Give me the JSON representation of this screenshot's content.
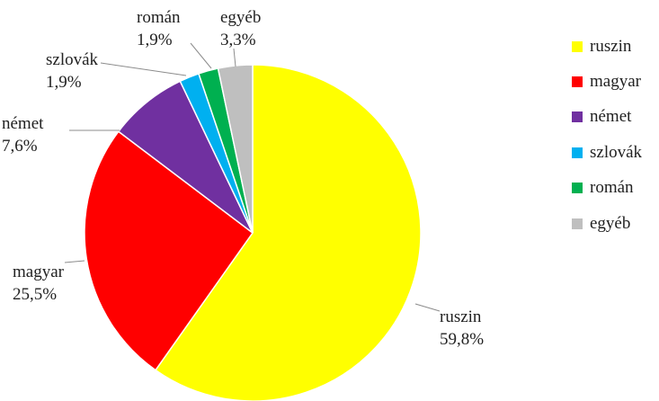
{
  "chart_data": {
    "type": "pie",
    "title": "",
    "categories": [
      "ruszin",
      "magyar",
      "német",
      "szlovák",
      "román",
      "egyéb"
    ],
    "values": [
      59.8,
      25.5,
      7.6,
      1.9,
      1.9,
      3.3
    ],
    "value_labels": [
      "59,8%",
      "25,5%",
      "7,6%",
      "1,9%",
      "1,9%",
      "3,3%"
    ],
    "colors": [
      "#FFFF00",
      "#FF0000",
      "#7030A0",
      "#00B0F0",
      "#00B050",
      "#BFBFBF"
    ],
    "legend_position": "right",
    "start_angle": "top, clockwise"
  }
}
